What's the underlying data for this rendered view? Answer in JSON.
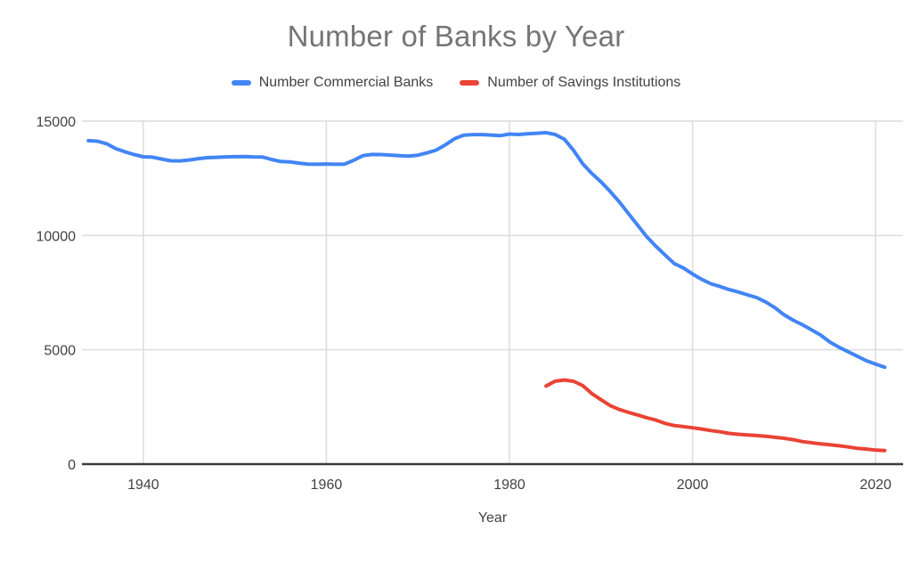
{
  "chart_data": {
    "type": "line",
    "title": "Number of Banks by Year",
    "xlabel": "Year",
    "legend_position": "top",
    "grid": true,
    "colors": {
      "axis": "#3c3c3c",
      "gridline": "#dcdcdc",
      "title_text": "#757575",
      "label_text": "#424242"
    },
    "axes": {
      "x": {
        "min": 1933.3,
        "max": 2023.0,
        "ticks": [
          1940,
          1960,
          1980,
          2000,
          2020
        ]
      },
      "y": {
        "min": 0,
        "max": 15195,
        "ticks": [
          0,
          5000,
          10000,
          15000
        ]
      }
    },
    "series": [
      {
        "name": "Number Commercial Banks",
        "color": "#4285f4",
        "x_start": 1934,
        "values": [
          14146,
          14125,
          14010,
          13797,
          13661,
          13538,
          13442,
          13426,
          13343,
          13268,
          13263,
          13302,
          13359,
          13403,
          13419,
          13436,
          13446,
          13455,
          13439,
          13432,
          13323,
          13237,
          13218,
          13165,
          13124,
          13114,
          13126,
          13115,
          13124,
          13291,
          13493,
          13544,
          13538,
          13514,
          13487,
          13473,
          13511,
          13612,
          13733,
          13964,
          14230,
          14384,
          14410,
          14411,
          14391,
          14364,
          14434,
          14414,
          14451,
          14469,
          14496,
          14417,
          14210,
          13723,
          13137,
          12715,
          12347,
          11927,
          11467,
          10960,
          10452,
          9942,
          9528,
          9143,
          8774,
          8581,
          8315,
          8080,
          7888,
          7770,
          7631,
          7526,
          7401,
          7284,
          7087,
          6840,
          6530,
          6291,
          6096,
          5876,
          5643,
          5338,
          5112,
          4918,
          4718,
          4519,
          4377,
          4236
        ]
      },
      {
        "name": "Number of Savings Institutions",
        "color": "#ea4335",
        "x_start": 1984,
        "values": [
          3418,
          3626,
          3677,
          3622,
          3438,
          3087,
          2815,
          2561,
          2390,
          2262,
          2152,
          2030,
          1926,
          1780,
          1687,
          1642,
          1589,
          1534,
          1467,
          1413,
          1345,
          1307,
          1279,
          1251,
          1219,
          1173,
          1128,
          1067,
          987,
          936,
          884,
          844,
          801,
          752,
          691,
          659,
          611,
          593
        ]
      }
    ]
  }
}
